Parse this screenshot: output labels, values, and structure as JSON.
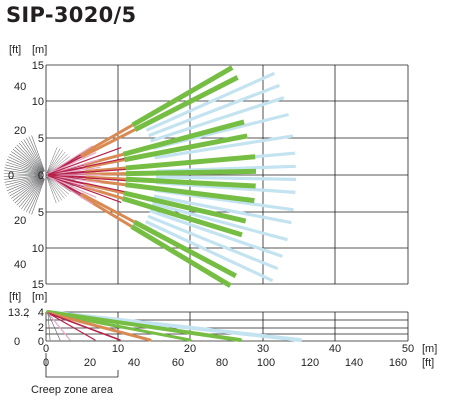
{
  "title": "SIP-3020/5",
  "top_view": {
    "ft_label": "[ft]",
    "m_label": "[m]",
    "m_ticks": [
      "15",
      "10",
      "5",
      "0",
      "5",
      "10",
      "15"
    ],
    "ft_ticks": [
      "40",
      "20",
      "0",
      "20",
      "40"
    ]
  },
  "side_view": {
    "ft_label": "[ft]",
    "m_label": "[m]",
    "m_ticks": [
      "4",
      "2",
      "0"
    ],
    "ft_ticks": [
      "13.2",
      "0"
    ],
    "ft_sep": ","
  },
  "x_axis": {
    "m_label": "[m]",
    "ft_label": "[ft]",
    "m_ticks": [
      "0",
      "10",
      "20",
      "30",
      "40",
      "50"
    ],
    "ft_ticks": [
      "0",
      "20",
      "40",
      "60",
      "80",
      "100",
      "120",
      "140",
      "160"
    ]
  },
  "creep_zone_label": "Creep zone area",
  "colors": {
    "long": "#76bd43",
    "long_far": "#c3e3f0",
    "mid_near": "#d98a52",
    "red": "#b5234a",
    "pink": "#e8a7c8",
    "grey": "#6d6e70",
    "text": "#231f20"
  }
}
